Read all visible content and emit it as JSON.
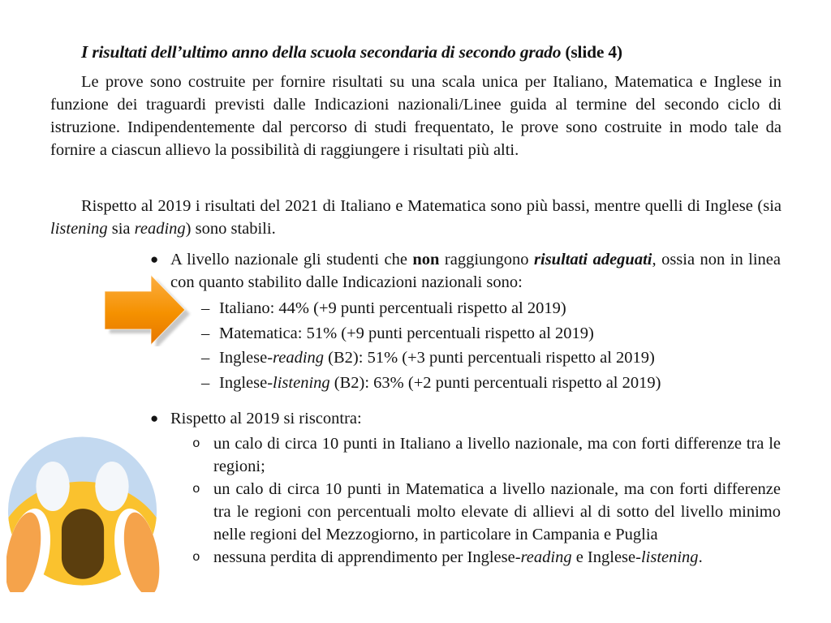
{
  "document": {
    "title": {
      "main": "I risultati dell’ultimo anno della scuola secondaria di secondo grado ",
      "suffix": "(slide 4)"
    },
    "paragraphs": [
      {
        "segments": [
          {
            "t": "Le prove sono costruite per fornire risultati su una scala unica per Italiano, Matematica e Inglese in funzione dei traguardi previsti dalle Indicazioni nazionali/Linee guida al termine del secondo ciclo di istruzione. Indipendentemente dal percorso di studi frequentato, le prove sono costruite in modo tale da fornire a ciascun allievo la possibilità di raggiungere i risultati più alti."
          }
        ]
      },
      {
        "segments": [
          {
            "t": "Rispetto al 2019 i risultati del 2021 di Italiano e Matematica sono più bassi, mentre quelli di Inglese (sia "
          },
          {
            "t": "listening",
            "i": true
          },
          {
            "t": " sia "
          },
          {
            "t": "reading",
            "i": true
          },
          {
            "t": ") sono stabili."
          }
        ]
      }
    ],
    "bullets": [
      {
        "marker": "●",
        "segments": [
          {
            "t": "A livello nazionale gli studenti che "
          },
          {
            "t": "non",
            "b": true
          },
          {
            "t": " raggiungono "
          },
          {
            "t": "risultati adeguati",
            "b": true,
            "i": true
          },
          {
            "t": ", ossia non in linea con quanto stabilito dalle Indicazioni nazionali sono:"
          }
        ],
        "sub_items": [
          {
            "marker": "–",
            "segments": [
              {
                "t": "Italiano: 44% (+9 punti percentuali rispetto al 2019)"
              }
            ]
          },
          {
            "marker": "–",
            "segments": [
              {
                "t": "Matematica: 51% (+9 punti percentuali rispetto al 2019)"
              }
            ]
          },
          {
            "marker": "–",
            "segments": [
              {
                "t": "Inglese-"
              },
              {
                "t": "reading",
                "i": true
              },
              {
                "t": " (B2): 51% (+3 punti percentuali rispetto al 2019)"
              }
            ]
          },
          {
            "marker": "–",
            "segments": [
              {
                "t": "Inglese-"
              },
              {
                "t": "listening",
                "i": true
              },
              {
                "t": " (B2): 63% (+2 punti percentuali rispetto al 2019)"
              }
            ]
          }
        ]
      },
      {
        "marker": "●",
        "segments": [
          {
            "t": "Rispetto al 2019 si riscontra:"
          }
        ],
        "sub_items": [
          {
            "marker": "o",
            "segments": [
              {
                "t": "un calo di circa 10 punti in Italiano a livello nazionale, ma con forti differenze tra le regioni;"
              }
            ]
          },
          {
            "marker": "o",
            "segments": [
              {
                "t": "un calo di circa 10 punti in Matematica a livello nazionale, ma con forti differenze tra le regioni con percentuali molto elevate di allievi al di sotto del livello minimo nelle regioni del Mezzogiorno, in particolare in Campania e Puglia"
              }
            ]
          },
          {
            "marker": "o",
            "segments": [
              {
                "t": "nessuna perdita di apprendimento per Inglese-"
              },
              {
                "t": "reading",
                "i": true
              },
              {
                "t": " e Inglese-"
              },
              {
                "t": "listening",
                "i": true
              },
              {
                "t": "."
              }
            ]
          }
        ]
      }
    ]
  },
  "graphics": {
    "arrow": {
      "fill_top": "#FCAE41",
      "fill_mid": "#F59100",
      "fill_bottom": "#E67600",
      "shadow": "#9b9b9b"
    },
    "emoji": {
      "head_top": "#C3D9F0",
      "face": "#FAC22E",
      "eyes": "#F4F7FA",
      "mouth": "#5B3E0E",
      "hands": "#F5A34B",
      "hand_outline": "#FFFFFF"
    }
  }
}
